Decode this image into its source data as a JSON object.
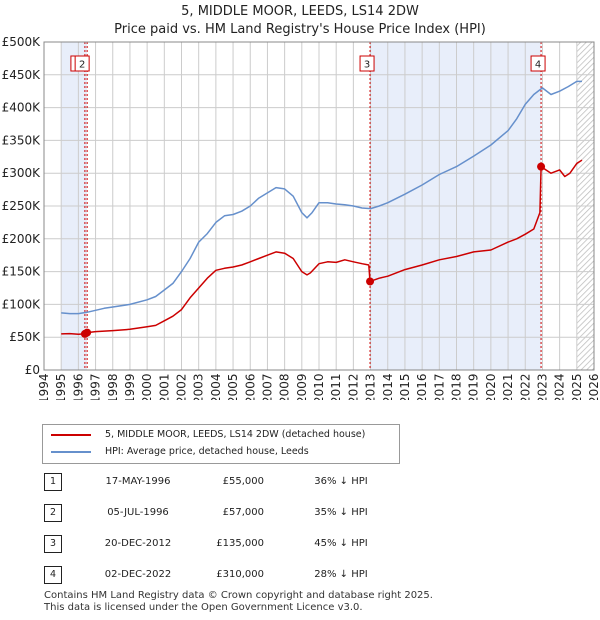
{
  "title": "5, MIDDLE MOOR, LEEDS, LS14 2DW",
  "subtitle": "Price paid vs. HM Land Registry's House Price Index (HPI)",
  "chart_data": {
    "type": "line",
    "title": "5, MIDDLE MOOR, LEEDS, LS14 2DW",
    "subtitle": "Price paid vs. HM Land Registry's House Price Index (HPI)",
    "xlim": [
      1994,
      2026
    ],
    "ylim": [
      0,
      500000
    ],
    "x_ticks": [
      1994,
      1995,
      1996,
      1997,
      1998,
      1999,
      2000,
      2001,
      2002,
      2003,
      2004,
      2005,
      2006,
      2007,
      2008,
      2009,
      2010,
      2011,
      2012,
      2013,
      2014,
      2015,
      2016,
      2017,
      2018,
      2019,
      2020,
      2021,
      2022,
      2023,
      2024,
      2025,
      2026
    ],
    "y_ticks": [
      {
        "value": 0,
        "label": "£0"
      },
      {
        "value": 50000,
        "label": "£50K"
      },
      {
        "value": 100000,
        "label": "£100K"
      },
      {
        "value": 150000,
        "label": "£150K"
      },
      {
        "value": 200000,
        "label": "£200K"
      },
      {
        "value": 250000,
        "label": "£250K"
      },
      {
        "value": 300000,
        "label": "£300K"
      },
      {
        "value": 350000,
        "label": "£350K"
      },
      {
        "value": 400000,
        "label": "£400K"
      },
      {
        "value": 450000,
        "label": "£450K"
      },
      {
        "value": 500000,
        "label": "£500K"
      }
    ],
    "colors": {
      "property": "#cc0000",
      "hpi": "#6690cc",
      "shade": "#e8eefa",
      "grid": "#cccccc",
      "marker": "#cc0000"
    },
    "shaded_spans": [
      [
        1995.0,
        1996.5
      ],
      [
        2012.97,
        2022.92
      ]
    ],
    "hatched_span": [
      2025.0,
      2026.0
    ],
    "series": [
      {
        "name": "5, MIDDLE MOOR, LEEDS, LS14 2DW (detached house)",
        "color": "#cc0000",
        "x": [
          1995.0,
          1995.5,
          1996.0,
          1996.38,
          1996.5,
          1997.0,
          1998.0,
          1999.0,
          2000.0,
          2000.5,
          2001.0,
          2001.5,
          2002.0,
          2002.5,
          2003.0,
          2003.5,
          2004.0,
          2004.5,
          2005.0,
          2005.5,
          2006.0,
          2006.5,
          2007.0,
          2007.5,
          2008.0,
          2008.5,
          2009.0,
          2009.3,
          2009.5,
          2010.0,
          2010.5,
          2011.0,
          2011.5,
          2012.0,
          2012.5,
          2012.9,
          2012.97,
          2013.5,
          2014.0,
          2015.0,
          2016.0,
          2017.0,
          2018.0,
          2019.0,
          2020.0,
          2021.0,
          2021.5,
          2022.0,
          2022.5,
          2022.85,
          2022.92,
          2023.2,
          2023.5,
          2024.0,
          2024.3,
          2024.6,
          2025.0,
          2025.3
        ],
        "values": [
          55000,
          55500,
          54500,
          55000,
          57000,
          58500,
          60000,
          62000,
          66000,
          68000,
          75000,
          82000,
          92000,
          110000,
          125000,
          140000,
          152000,
          155000,
          157000,
          160000,
          165000,
          170000,
          175000,
          180000,
          178000,
          170000,
          150000,
          145000,
          148000,
          162000,
          165000,
          164000,
          168000,
          165000,
          162000,
          160000,
          135000,
          140000,
          143000,
          153000,
          160000,
          168000,
          173000,
          180000,
          183000,
          195000,
          200000,
          207000,
          215000,
          240000,
          310000,
          305000,
          300000,
          305000,
          295000,
          300000,
          315000,
          320000
        ]
      },
      {
        "name": "HPI: Average price, detached house, Leeds",
        "color": "#6690cc",
        "x": [
          1995.0,
          1995.5,
          1996.0,
          1996.5,
          1997.0,
          1997.5,
          1998.0,
          1999.0,
          2000.0,
          2000.5,
          2001.0,
          2001.5,
          2002.0,
          2002.5,
          2003.0,
          2003.5,
          2004.0,
          2004.5,
          2005.0,
          2005.5,
          2006.0,
          2006.5,
          2007.0,
          2007.5,
          2008.0,
          2008.5,
          2009.0,
          2009.3,
          2009.6,
          2010.0,
          2010.5,
          2011.0,
          2011.5,
          2012.0,
          2012.5,
          2013.0,
          2013.5,
          2014.0,
          2015.0,
          2016.0,
          2017.0,
          2018.0,
          2019.0,
          2020.0,
          2021.0,
          2021.5,
          2022.0,
          2022.5,
          2023.0,
          2023.5,
          2024.0,
          2024.5,
          2025.0,
          2025.3
        ],
        "values": [
          87000,
          86000,
          86000,
          88000,
          91000,
          94000,
          96000,
          100000,
          107000,
          112000,
          122000,
          132000,
          150000,
          170000,
          195000,
          208000,
          225000,
          235000,
          237000,
          242000,
          250000,
          262000,
          270000,
          278000,
          276000,
          265000,
          240000,
          232000,
          240000,
          255000,
          255000,
          253000,
          252000,
          250000,
          247000,
          246000,
          250000,
          255000,
          268000,
          282000,
          298000,
          310000,
          326000,
          343000,
          365000,
          383000,
          405000,
          420000,
          430000,
          420000,
          425000,
          432000,
          440000,
          440000
        ]
      }
    ],
    "transactions": [
      {
        "label": "1",
        "x": 1996.38,
        "value": 55000
      },
      {
        "label": "2",
        "x": 1996.51,
        "value": 57000
      },
      {
        "label": "3",
        "x": 2012.97,
        "value": 135000
      },
      {
        "label": "4",
        "x": 2022.92,
        "value": 310000
      }
    ]
  },
  "legend": {
    "property_label": "5, MIDDLE MOOR, LEEDS, LS14 2DW (detached house)",
    "hpi_label": "HPI: Average price, detached house, Leeds"
  },
  "table": [
    {
      "num": "1",
      "date": "17-MAY-1996",
      "price": "£55,000",
      "hpi": "36% ↓ HPI"
    },
    {
      "num": "2",
      "date": "05-JUL-1996",
      "price": "£57,000",
      "hpi": "35% ↓ HPI"
    },
    {
      "num": "3",
      "date": "20-DEC-2012",
      "price": "£135,000",
      "hpi": "45% ↓ HPI"
    },
    {
      "num": "4",
      "date": "02-DEC-2022",
      "price": "£310,000",
      "hpi": "28% ↓ HPI"
    }
  ],
  "footer": {
    "line1": "Contains HM Land Registry data © Crown copyright and database right 2025.",
    "line2": "This data is licensed under the Open Government Licence v3.0."
  }
}
